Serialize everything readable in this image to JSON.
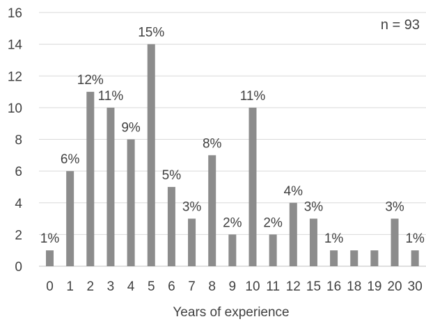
{
  "chart_data": {
    "type": "bar",
    "title": "",
    "xlabel": "Years of experience",
    "ylabel": "",
    "ylim": [
      0,
      16
    ],
    "yticks": [
      0,
      2,
      4,
      6,
      8,
      10,
      12,
      14,
      16
    ],
    "grid": true,
    "legend": "none",
    "annotation": "n = 93",
    "categories": [
      "0",
      "1",
      "2",
      "3",
      "4",
      "5",
      "6",
      "7",
      "8",
      "9",
      "10",
      "11",
      "12",
      "15",
      "16",
      "18",
      "19",
      "20",
      "30"
    ],
    "values": [
      1,
      6,
      11,
      10,
      8,
      14,
      5,
      3,
      7,
      2,
      10,
      2,
      4,
      3,
      1,
      1,
      1,
      3,
      1
    ],
    "data_labels": [
      "1%",
      "6%",
      "12%",
      "11%",
      "9%",
      "15%",
      "5%",
      "3%",
      "8%",
      "2%",
      "11%",
      "2%",
      "4%",
      "3%",
      "1%",
      "",
      "",
      "3%",
      "1%"
    ],
    "colors": {
      "bar": "#8c8c8c",
      "grid": "#d9d9d9",
      "axis": "#bfbfbf",
      "text": "#404040"
    }
  }
}
